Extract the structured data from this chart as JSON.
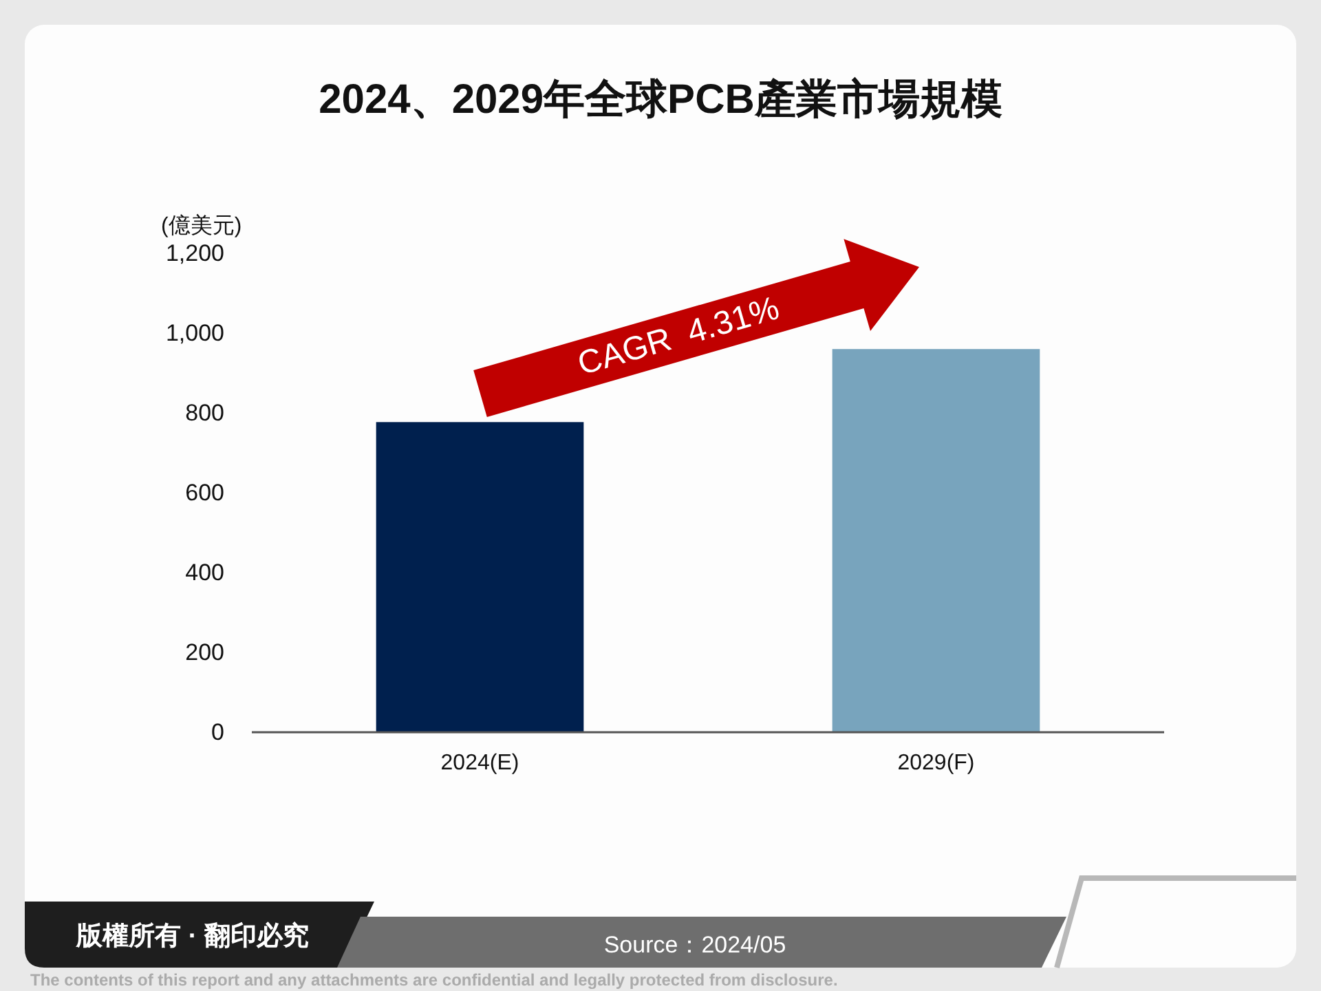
{
  "chart_data": {
    "type": "bar",
    "title": "2024、2029年全球PCB產業市場規模",
    "ylabel": "(億美元)",
    "categories": [
      "2024(E)",
      "2029(F)"
    ],
    "values": [
      777,
      960
    ],
    "colors": [
      "#00204e",
      "#78a4bd"
    ],
    "ylim": [
      0,
      1200
    ],
    "yticks": [
      0,
      200,
      400,
      600,
      800,
      {
        "value": 1000,
        "label": "1,000"
      },
      {
        "value": 1200,
        "label": "1,200"
      }
    ],
    "annotations": [
      "CAGR  4.31%",
      "版權所有 · 翻印必究",
      "Source：2024/05",
      "The contents of this report and any attachments are confidential and legally protected from disclosure."
    ]
  }
}
